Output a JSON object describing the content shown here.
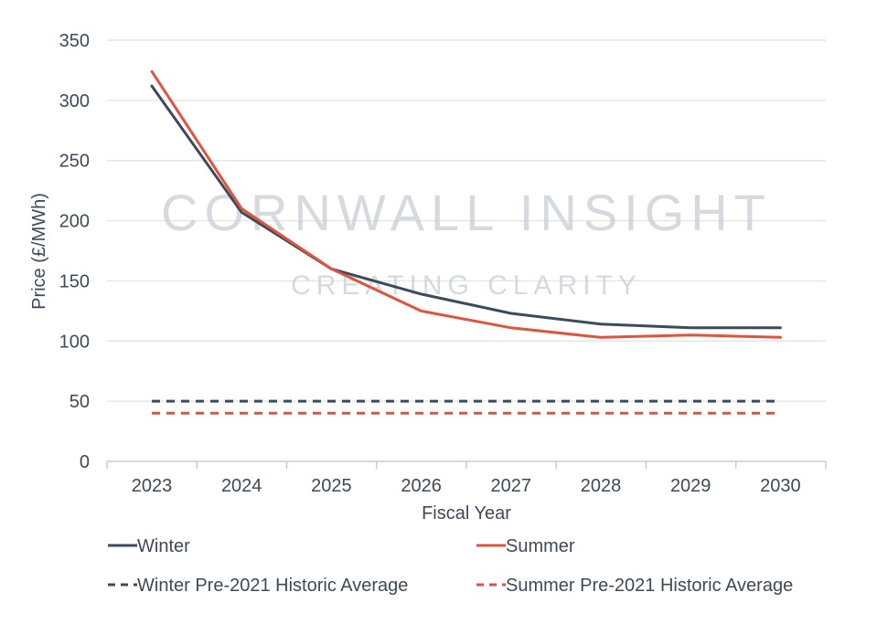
{
  "chart_data": {
    "type": "line",
    "title": "",
    "xlabel": "Fiscal Year",
    "ylabel": "Price (£/MWh)",
    "categories": [
      "2023",
      "2024",
      "2025",
      "2026",
      "2027",
      "2028",
      "2029",
      "2030"
    ],
    "ylim": [
      0,
      350
    ],
    "yticks": [
      0,
      50,
      100,
      150,
      200,
      250,
      300,
      350
    ],
    "grid": true,
    "legend_position": "bottom",
    "series": [
      {
        "name": "Winter",
        "color": "#3d4a5c",
        "dashed": false,
        "values": [
          312,
          207,
          160,
          139,
          123,
          114,
          111,
          111
        ]
      },
      {
        "name": "Summer",
        "color": "#e0533d",
        "dashed": false,
        "values": [
          324,
          210,
          160,
          125,
          111,
          103,
          105,
          103
        ]
      },
      {
        "name": "Winter Pre-2021 Historic Average",
        "color": "#3d4a5c",
        "dashed": true,
        "values": [
          50,
          50,
          50,
          50,
          50,
          50,
          50,
          50
        ]
      },
      {
        "name": "Summer Pre-2021 Historic Average",
        "color": "#e0533d",
        "dashed": true,
        "values": [
          40,
          40,
          40,
          40,
          40,
          40,
          40,
          40
        ]
      }
    ],
    "watermark": {
      "main": "CORNWALL INSIGHT",
      "sub": "CREATING CLARITY"
    }
  }
}
